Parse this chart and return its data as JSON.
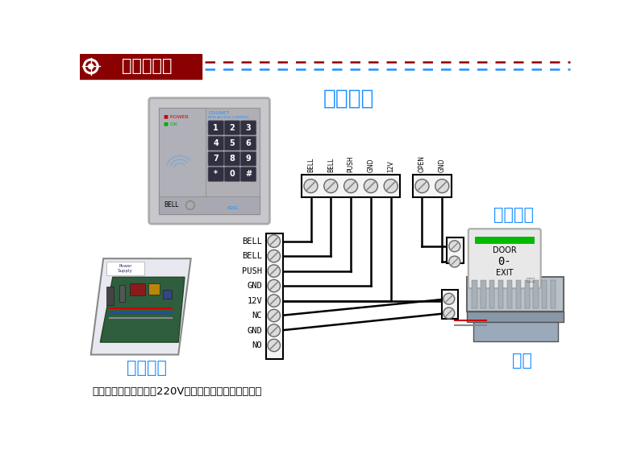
{
  "title_text": "接线示意图",
  "title_bg": "#8B0000",
  "title_fg": "#FFFFFF",
  "header_line_color1": "#8B0000",
  "header_line_color2": "#1E90FF",
  "bg_color": "#FFFFFF",
  "note_text": "注：电源控制器需接入220V，其他配件可用网络线连接",
  "label_main": "门禁主机",
  "label_power": "门禁电源",
  "label_door_btn": "出门按钮",
  "label_lock": "电锁",
  "top5_labels": [
    "BELL",
    "BELL",
    "PUSH",
    "GND",
    "12V"
  ],
  "top2_labels": [
    "OPEN",
    "GND"
  ],
  "left_labels": [
    "BELL",
    "BELL",
    "PUSH",
    "GND",
    "12V",
    "NC",
    "GND",
    "NO"
  ],
  "text_color_blue": "#1E90FF",
  "text_color_black": "#000000",
  "wire_color": "#000000",
  "kpad_bg": "#C8C8CC",
  "kpad_inner_bg": "#A8A8B0",
  "btn_bg": "#303040",
  "btn_fg": "#FFFFFF",
  "term_bg": "#E0E0E0",
  "term_circle": "#D0D0D0"
}
